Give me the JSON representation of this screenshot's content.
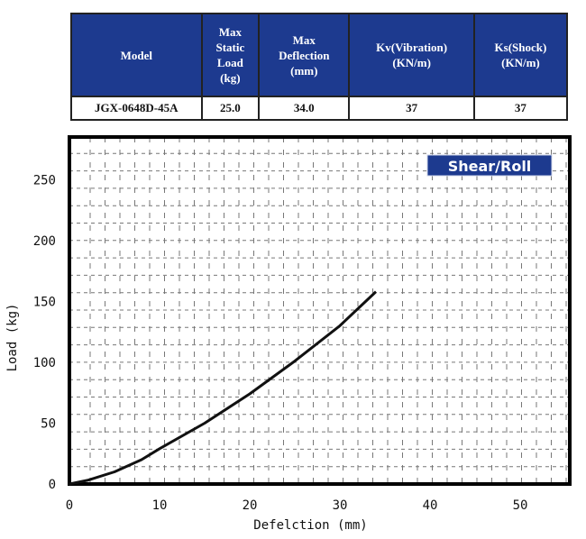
{
  "table": {
    "headers": [
      "Model",
      "Max Static Load (kg)",
      "Max Deflection (mm)",
      "Kv(Vibration) (KN/m)",
      "Ks(Shock) (KN/m)"
    ],
    "header_lines": [
      [
        "Model"
      ],
      [
        "Max",
        "Static",
        "Load",
        "(kg)"
      ],
      [
        "Max",
        "Deflection",
        "(mm)"
      ],
      [
        "Kv(Vibration)",
        "(KN/m)"
      ],
      [
        "Ks(Shock)",
        "(KN/m)"
      ]
    ],
    "row": [
      "JGX-0648D-45A",
      "25.0",
      "34.0",
      "37",
      "37"
    ],
    "header_color": "#1d3a8f"
  },
  "chart_data": {
    "type": "line",
    "title": "Shear/Roll",
    "xlabel": "Defelction (mm)",
    "ylabel": "Load (kg)",
    "xlim": [
      0,
      55.5
    ],
    "ylim": [
      0,
      285
    ],
    "xticks": [
      0,
      10,
      20,
      30,
      40,
      50
    ],
    "yticks": [
      0,
      50,
      100,
      150,
      200,
      250
    ],
    "grid": true,
    "series": [
      {
        "name": "Shear/Roll",
        "x": [
          0,
          2,
          5,
          8,
          10,
          15,
          20,
          25,
          30,
          34
        ],
        "y": [
          0,
          3,
          10,
          20,
          29,
          50,
          74,
          101,
          130,
          158
        ],
        "color": "#111111"
      }
    ],
    "legend_color": "#1d3a8f"
  }
}
